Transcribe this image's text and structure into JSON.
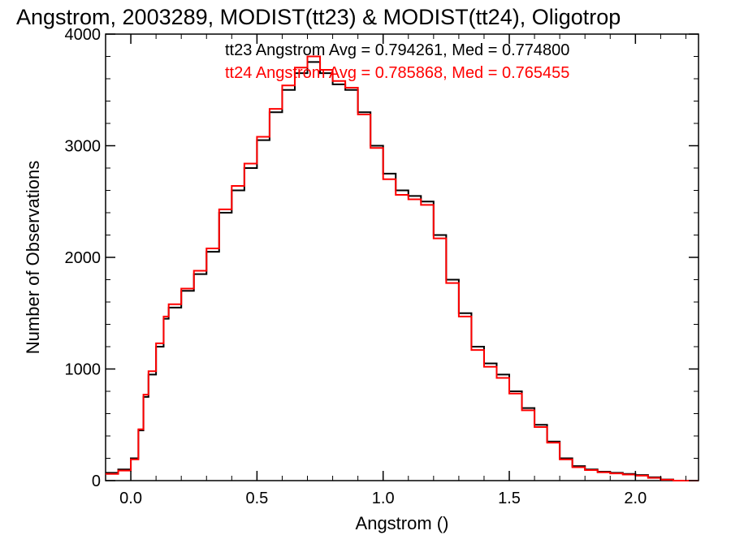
{
  "chart_data": {
    "type": "line",
    "title": "Angstrom, 2003289, MODIST(tt23) & MODIST(tt24), Oligotrop",
    "xlabel": "Angstrom ()",
    "ylabel": "Number of Observations",
    "xlim": [
      -0.1,
      2.25
    ],
    "ylim": [
      0,
      4000
    ],
    "xticks": [
      0.0,
      0.5,
      1.0,
      1.5,
      2.0
    ],
    "xtick_labels": [
      "0.0",
      "0.5",
      "1.0",
      "1.5",
      "2.0"
    ],
    "yticks": [
      0,
      1000,
      2000,
      3000,
      4000
    ],
    "ytick_labels": [
      "0",
      "1000",
      "2000",
      "3000",
      "4000"
    ],
    "grid": false,
    "annotations": [
      {
        "text": "tt23 Angstrom Avg = 0.794261, Med = 0.774800",
        "color": "#000000"
      },
      {
        "text": "tt24 Angstrom Avg = 0.785868, Med = 0.765455",
        "color": "#ff0000"
      }
    ],
    "series": [
      {
        "color": "#000000",
        "x": [
          -0.1,
          -0.05,
          0.0,
          0.03,
          0.05,
          0.07,
          0.1,
          0.13,
          0.15,
          0.2,
          0.25,
          0.3,
          0.35,
          0.4,
          0.45,
          0.5,
          0.55,
          0.6,
          0.65,
          0.7,
          0.75,
          0.8,
          0.85,
          0.9,
          0.95,
          1.0,
          1.05,
          1.1,
          1.15,
          1.2,
          1.25,
          1.3,
          1.35,
          1.4,
          1.45,
          1.5,
          1.55,
          1.6,
          1.65,
          1.7,
          1.75,
          1.8,
          1.85,
          1.9,
          1.95,
          2.0,
          2.05,
          2.1,
          2.15,
          2.2,
          2.25
        ],
        "y": [
          70,
          100,
          200,
          450,
          750,
          950,
          1200,
          1450,
          1550,
          1700,
          1850,
          2050,
          2400,
          2600,
          2800,
          3050,
          3300,
          3500,
          3650,
          3750,
          3650,
          3550,
          3500,
          3300,
          3000,
          2750,
          2600,
          2550,
          2500,
          2200,
          1800,
          1500,
          1200,
          1050,
          950,
          800,
          650,
          500,
          350,
          200,
          130,
          100,
          80,
          70,
          60,
          50,
          30,
          10,
          0,
          0,
          0
        ],
        "x_step": "histogram"
      },
      {
        "color": "#ff0000",
        "x": [
          -0.1,
          -0.05,
          0.0,
          0.03,
          0.05,
          0.07,
          0.1,
          0.13,
          0.15,
          0.2,
          0.25,
          0.3,
          0.35,
          0.4,
          0.45,
          0.5,
          0.55,
          0.6,
          0.65,
          0.7,
          0.75,
          0.8,
          0.85,
          0.9,
          0.95,
          1.0,
          1.05,
          1.1,
          1.15,
          1.2,
          1.25,
          1.3,
          1.35,
          1.4,
          1.45,
          1.5,
          1.55,
          1.6,
          1.65,
          1.7,
          1.75,
          1.8,
          1.85,
          1.9,
          1.95,
          2.0,
          2.05,
          2.1,
          2.15,
          2.2,
          2.25
        ],
        "y": [
          60,
          90,
          190,
          460,
          770,
          980,
          1230,
          1470,
          1580,
          1720,
          1880,
          2080,
          2430,
          2640,
          2840,
          3080,
          3330,
          3540,
          3700,
          3800,
          3680,
          3580,
          3520,
          3280,
          2980,
          2700,
          2560,
          2520,
          2470,
          2170,
          1770,
          1470,
          1170,
          1020,
          920,
          780,
          630,
          480,
          340,
          190,
          120,
          95,
          75,
          65,
          55,
          45,
          25,
          8,
          0,
          0,
          0
        ],
        "x_step": "histogram"
      }
    ]
  }
}
